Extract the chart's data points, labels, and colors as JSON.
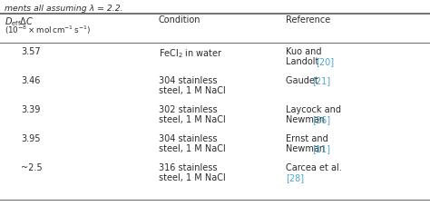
{
  "caption_text": "ments all assuming λ = 2.2.",
  "col2_header": "Condition",
  "col3_header": "Reference",
  "link_color": "#4da6c8",
  "text_color": "#2b2b2b",
  "bg_color": "#ffffff",
  "line_color": "#666666",
  "rows": [
    {
      "val": "3.57",
      "cond": [
        "FeCl$_2$ in water",
        ""
      ],
      "ref_plain": [
        "Kuo and",
        "Landolt "
      ],
      "ref_link": "[20]",
      "ref_link_line": 1
    },
    {
      "val": "3.46",
      "cond": [
        "304 stainless",
        "steel, 1 M NaCl"
      ],
      "ref_plain": [
        "Gaudet "
      ],
      "ref_link": "[21]",
      "ref_link_line": 0
    },
    {
      "val": "3.39",
      "cond": [
        "302 stainless",
        "steel, 1 M NaCl"
      ],
      "ref_plain": [
        "Laycock and",
        "Newman "
      ],
      "ref_link": "[26]",
      "ref_link_line": 1
    },
    {
      "val": "3.95",
      "cond": [
        "304 stainless",
        "steel, 1 M NaCl"
      ],
      "ref_plain": [
        "Ernst and",
        "Newman "
      ],
      "ref_link": "[11]",
      "ref_link_line": 1
    },
    {
      "val": "~2.5",
      "cond": [
        "316 stainless",
        "steel, 1 M NaCl"
      ],
      "ref_plain": [
        "Carcea et al.",
        ""
      ],
      "ref_link": "[28]",
      "ref_link_line": 1
    }
  ]
}
